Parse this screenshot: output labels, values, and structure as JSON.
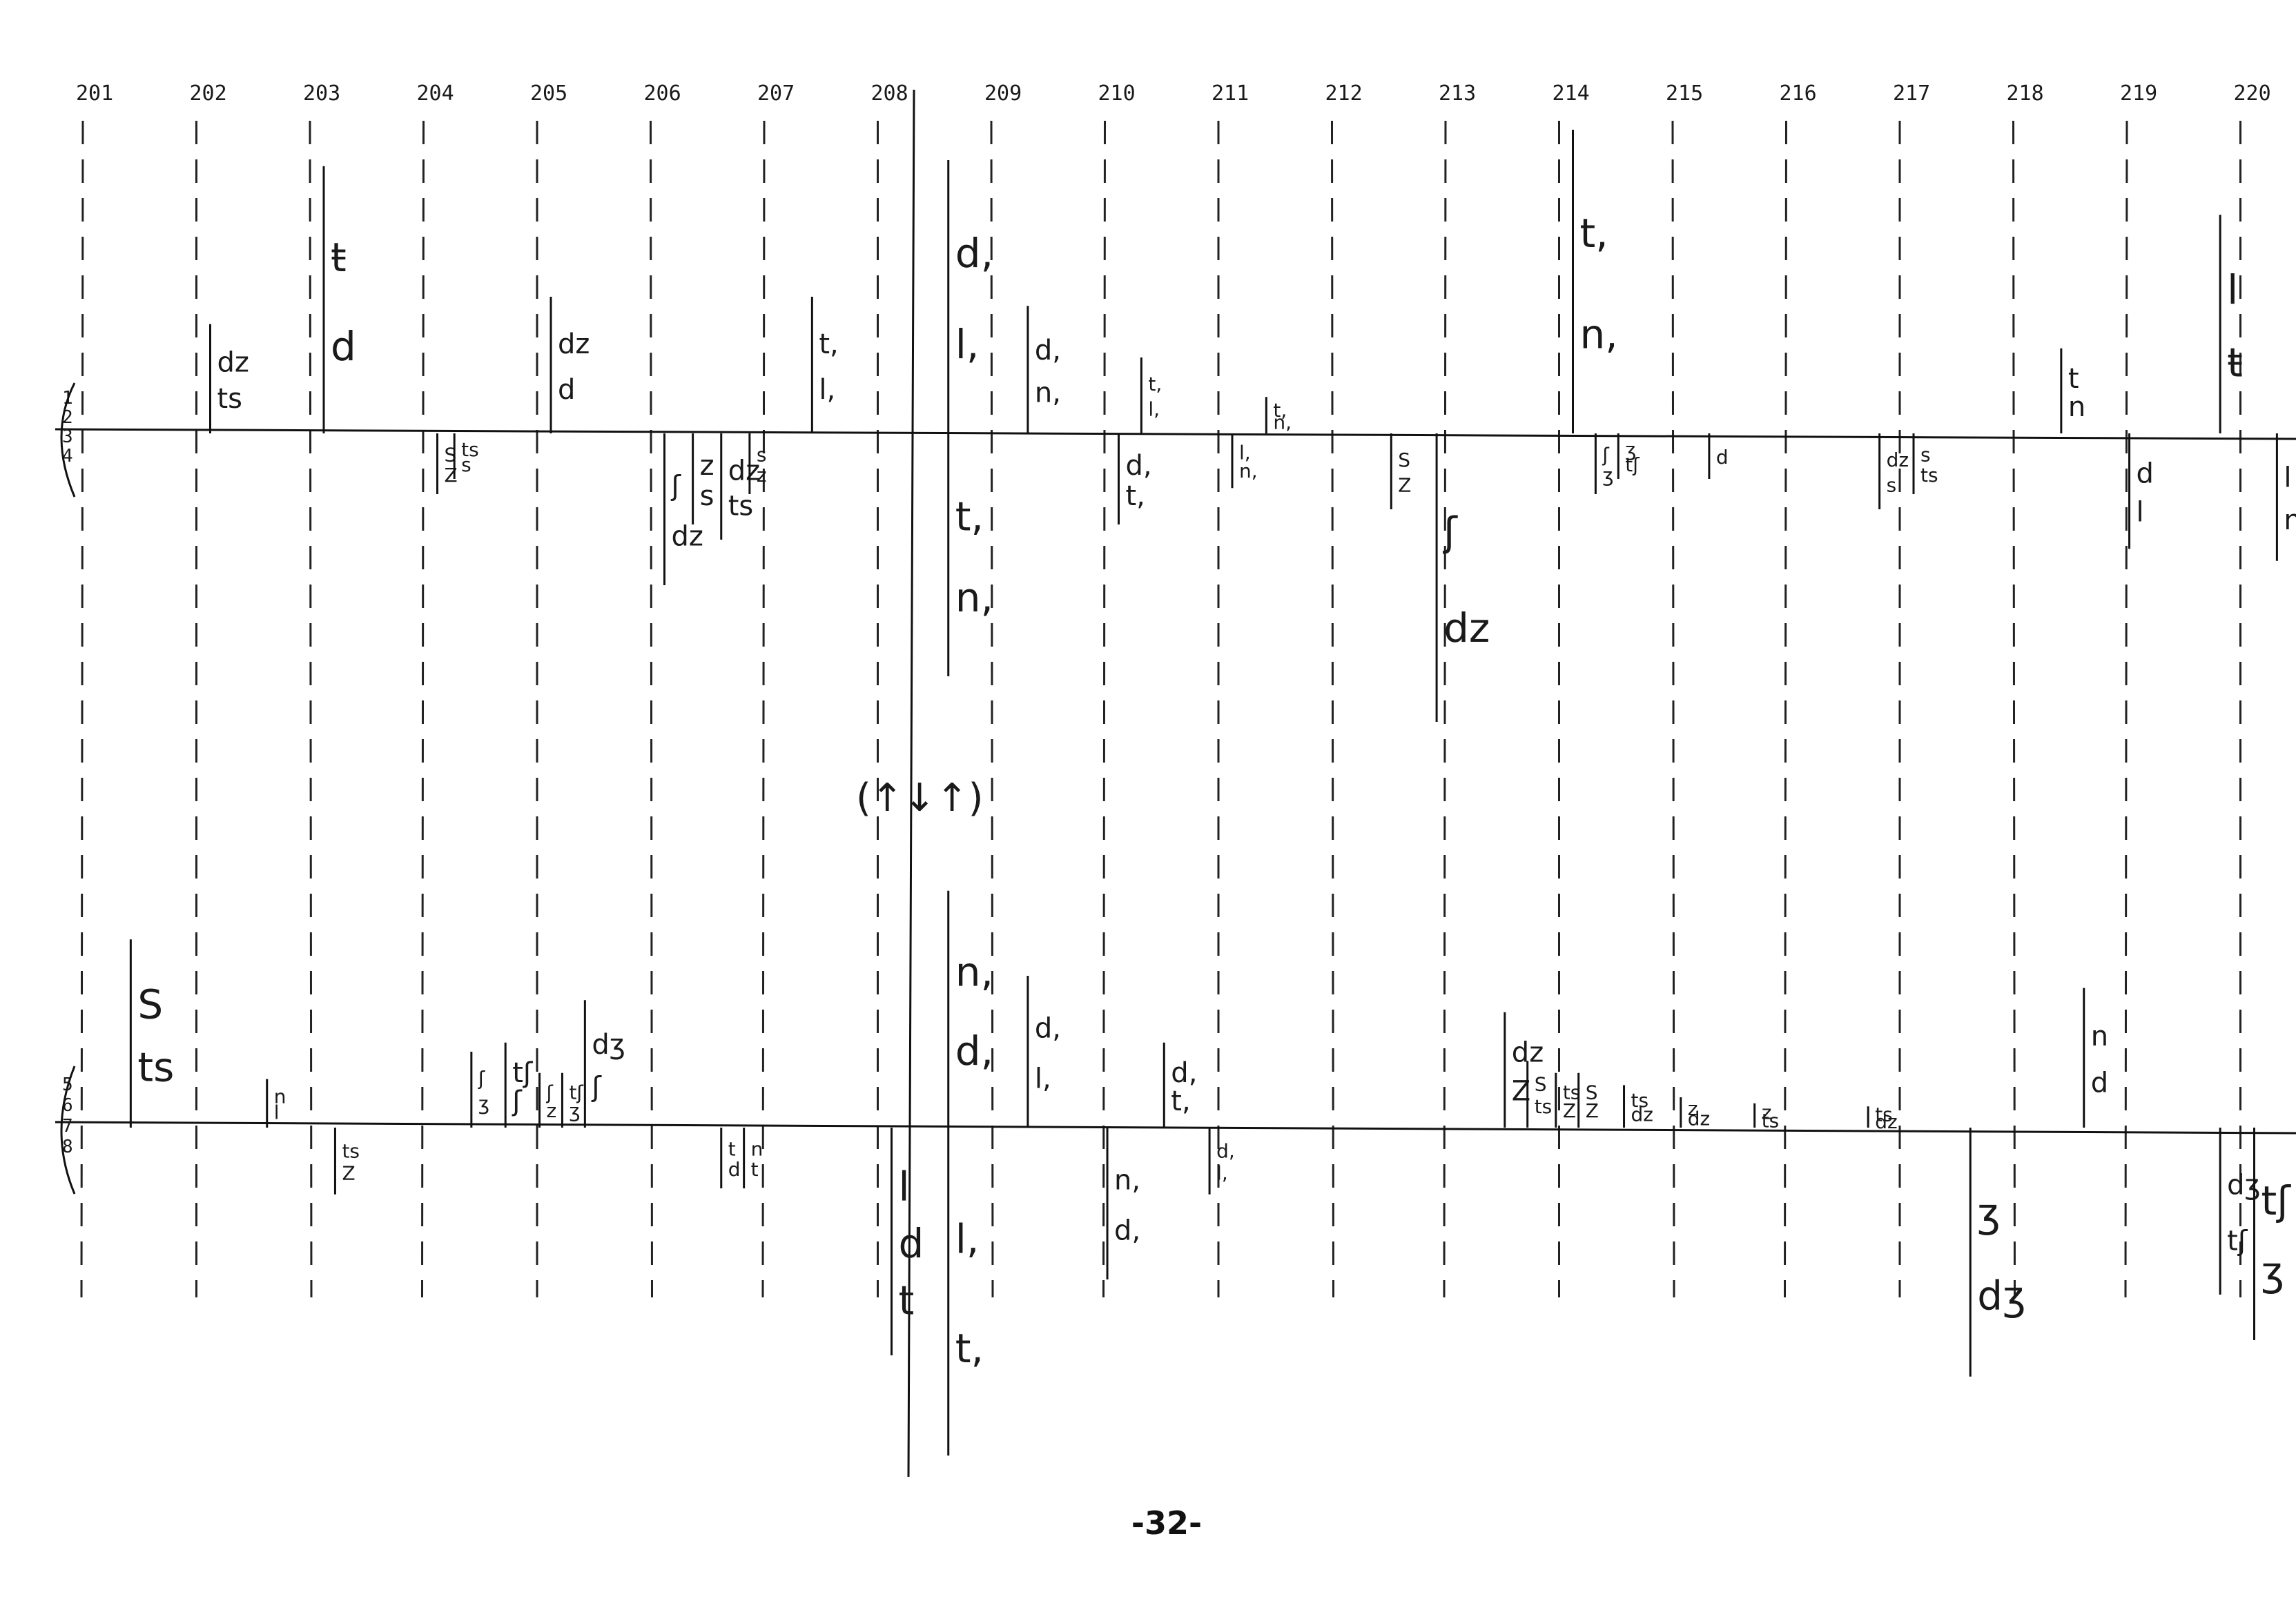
{
  "columns": [
    "201",
    "202",
    "203",
    "204",
    "205",
    "206",
    "207",
    "208",
    "209",
    "210",
    "211",
    "212",
    "213",
    "214",
    "215",
    "216",
    "217",
    "218",
    "219",
    "220"
  ],
  "row_labels_top": [
    "1",
    "2",
    "3",
    "4"
  ],
  "row_labels_bottom": [
    "5",
    "6",
    "7",
    "8"
  ],
  "center_marker": "(↑↓↑)",
  "page_number": "-32-",
  "top_marks": [
    {
      "col": 1,
      "dir": "up",
      "len": 0.36,
      "labels": [
        "dz",
        "ts"
      ]
    },
    {
      "col": 2,
      "dir": "up",
      "len": 0.88,
      "labels": [
        "ŧ",
        "d"
      ]
    },
    {
      "col": 3,
      "dir": "down",
      "len": 0.2,
      "labels": [
        "S",
        "Z"
      ]
    },
    {
      "col": 3.15,
      "dir": "down",
      "len": 0.15,
      "labels": [
        "ts",
        "s"
      ]
    },
    {
      "col": 4,
      "dir": "up",
      "len": 0.45,
      "labels": [
        "dz",
        "d"
      ]
    },
    {
      "col": 5,
      "dir": "down",
      "len": 0.5,
      "labels": [
        "ʃ",
        "dz"
      ]
    },
    {
      "col": 5.25,
      "dir": "down",
      "len": 0.3,
      "labels": [
        "z",
        "s"
      ]
    },
    {
      "col": 5.5,
      "dir": "down",
      "len": 0.35,
      "labels": [
        "dz",
        "ts"
      ]
    },
    {
      "col": 5.75,
      "dir": "down",
      "len": 0.2,
      "labels": [
        "s",
        "z"
      ]
    },
    {
      "col": 6.3,
      "dir": "up",
      "len": 0.45,
      "labels": [
        "t,",
        "l,"
      ]
    },
    {
      "col": 7.5,
      "dir": "up",
      "len": 0.9,
      "labels": [
        "d,",
        "l,"
      ]
    },
    {
      "col": 7.5,
      "dir": "down",
      "len": 0.8,
      "labels": [
        "t,",
        "n,"
      ]
    },
    {
      "col": 8.2,
      "dir": "up",
      "len": 0.42,
      "labels": [
        "d,",
        "n,"
      ]
    },
    {
      "col": 9.2,
      "dir": "up",
      "len": 0.25,
      "labels": [
        "t,",
        "l,"
      ]
    },
    {
      "col": 9.0,
      "dir": "down",
      "len": 0.3,
      "labels": [
        "d,",
        "t,"
      ]
    },
    {
      "col": 10.0,
      "dir": "down",
      "len": 0.18,
      "labels": [
        "l,",
        "n,"
      ]
    },
    {
      "col": 10.3,
      "dir": "up",
      "len": 0.12,
      "labels": [
        "t,",
        "n,"
      ]
    },
    {
      "col": 11.4,
      "dir": "down",
      "len": 0.25,
      "labels": [
        "S",
        "Z"
      ]
    },
    {
      "col": 11.8,
      "dir": "down",
      "len": 0.95,
      "labels": [
        "ʃ",
        "dz"
      ]
    },
    {
      "col": 13.0,
      "dir": "up",
      "len": 1.0,
      "labels": [
        "t,",
        "n,"
      ]
    },
    {
      "col": 13.2,
      "dir": "down",
      "len": 0.2,
      "labels": [
        "ʃ",
        "ʒ"
      ]
    },
    {
      "col": 13.4,
      "dir": "down",
      "len": 0.15,
      "labels": [
        "ʒ",
        "tʃ"
      ]
    },
    {
      "col": 14.2,
      "dir": "down",
      "len": 0.15,
      "labels": [
        "d"
      ]
    },
    {
      "col": 15.7,
      "dir": "down",
      "len": 0.25,
      "labels": [
        "dz",
        "s"
      ]
    },
    {
      "col": 16.0,
      "dir": "down",
      "len": 0.2,
      "labels": [
        "s",
        "ts"
      ]
    },
    {
      "col": 17.3,
      "dir": "up",
      "len": 0.28,
      "labels": [
        "t",
        "n"
      ]
    },
    {
      "col": 17.9,
      "dir": "down",
      "len": 0.38,
      "labels": [
        "d",
        "l"
      ]
    },
    {
      "col": 18.7,
      "dir": "up",
      "len": 0.72,
      "labels": [
        "l",
        "ŧ"
      ]
    },
    {
      "col": 19.2,
      "dir": "down",
      "len": 0.42,
      "labels": [
        "l",
        "n"
      ]
    }
  ],
  "bottom_marks": [
    {
      "col": 0.3,
      "dir": "up",
      "len": 0.62,
      "labels": [
        "S",
        "ts"
      ]
    },
    {
      "col": 1.5,
      "dir": "up",
      "len": 0.16,
      "labels": [
        "n",
        "l"
      ]
    },
    {
      "col": 2.1,
      "dir": "down",
      "len": 0.22,
      "labels": [
        "ts",
        "Z"
      ]
    },
    {
      "col": 3.3,
      "dir": "up",
      "len": 0.25,
      "labels": [
        "ʃ",
        "ʒ"
      ]
    },
    {
      "col": 3.6,
      "dir": "up",
      "len": 0.28,
      "labels": [
        "tʃ",
        "ʃ"
      ]
    },
    {
      "col": 3.9,
      "dir": "up",
      "len": 0.18,
      "labels": [
        "ʃ",
        "z"
      ]
    },
    {
      "col": 4.1,
      "dir": "up",
      "len": 0.18,
      "labels": [
        "tʃ",
        "ʒ"
      ]
    },
    {
      "col": 4.3,
      "dir": "up",
      "len": 0.42,
      "labels": [
        "dʒ",
        "ʃ"
      ]
    },
    {
      "col": 5.5,
      "dir": "down",
      "len": 0.2,
      "labels": [
        "t",
        "d"
      ]
    },
    {
      "col": 5.7,
      "dir": "down",
      "len": 0.2,
      "labels": [
        "n",
        "t"
      ]
    },
    {
      "col": 7.0,
      "dir": "down",
      "len": 0.75,
      "labels": [
        "l",
        "d",
        "t"
      ]
    },
    {
      "col": 7.5,
      "dir": "up",
      "len": 0.78,
      "labels": [
        "n,",
        "d,"
      ]
    },
    {
      "col": 7.5,
      "dir": "down",
      "len": 1.08,
      "labels": [
        "l,",
        "t,"
      ]
    },
    {
      "col": 8.2,
      "dir": "up",
      "len": 0.5,
      "labels": [
        "d,",
        "l,"
      ]
    },
    {
      "col": 8.9,
      "dir": "down",
      "len": 0.5,
      "labels": [
        "n,",
        "d,"
      ]
    },
    {
      "col": 9.4,
      "dir": "up",
      "len": 0.28,
      "labels": [
        "d,",
        "t,"
      ]
    },
    {
      "col": 9.8,
      "dir": "down",
      "len": 0.22,
      "labels": [
        "d,",
        "l,"
      ]
    },
    {
      "col": 12.4,
      "dir": "up",
      "len": 0.38,
      "labels": [
        "dz",
        "Z"
      ]
    },
    {
      "col": 12.6,
      "dir": "up",
      "len": 0.22,
      "labels": [
        "S",
        "ts"
      ]
    },
    {
      "col": 12.85,
      "dir": "up",
      "len": 0.18,
      "labels": [
        "ts",
        "Z"
      ]
    },
    {
      "col": 13.05,
      "dir": "up",
      "len": 0.18,
      "labels": [
        "S",
        "Z"
      ]
    },
    {
      "col": 13.45,
      "dir": "up",
      "len": 0.14,
      "labels": [
        "ts",
        "dz"
      ]
    },
    {
      "col": 13.95,
      "dir": "up",
      "len": 0.1,
      "labels": [
        "z",
        "dz"
      ]
    },
    {
      "col": 14.6,
      "dir": "up",
      "len": 0.08,
      "labels": [
        "z",
        "ts"
      ]
    },
    {
      "col": 15.6,
      "dir": "up",
      "len": 0.07,
      "labels": [
        "ts",
        "dz"
      ]
    },
    {
      "col": 16.5,
      "dir": "down",
      "len": 0.82,
      "labels": [
        "ʒ",
        "dʒ"
      ]
    },
    {
      "col": 17.5,
      "dir": "up",
      "len": 0.46,
      "labels": [
        "n",
        "d"
      ]
    },
    {
      "col": 18.7,
      "dir": "down",
      "len": 0.55,
      "labels": [
        "dʒ",
        "tʃ"
      ]
    },
    {
      "col": 19.0,
      "dir": "down",
      "len": 0.7,
      "labels": [
        "tʃ",
        "ʒ"
      ]
    }
  ]
}
